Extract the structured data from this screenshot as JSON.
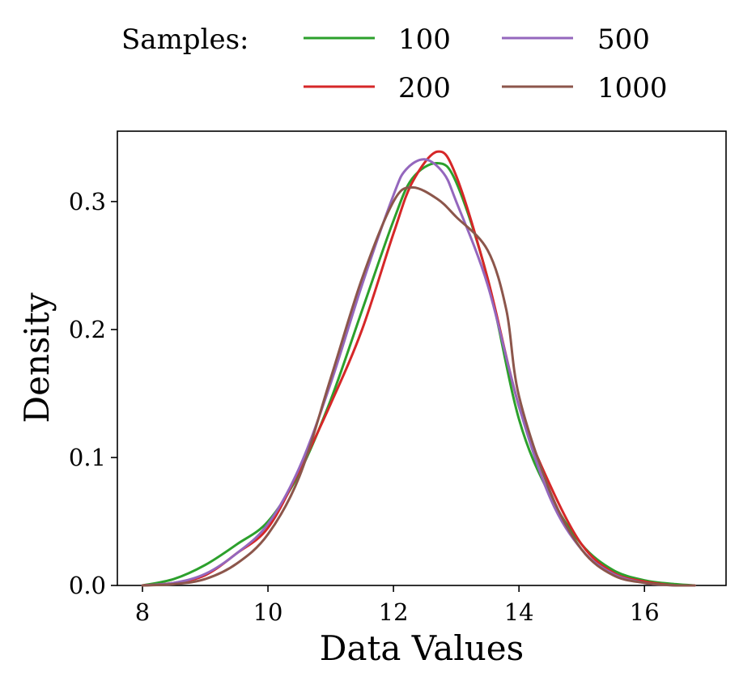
{
  "chart_data": {
    "type": "line",
    "title": "",
    "xlabel": "Data Values",
    "ylabel": "Density",
    "xlim": [
      7.6,
      17.3
    ],
    "ylim": [
      0,
      0.355
    ],
    "xticks": [
      8,
      10,
      12,
      14,
      16
    ],
    "yticks": [
      0.0,
      0.1,
      0.2,
      0.3
    ],
    "xtick_labels": [
      "8",
      "10",
      "12",
      "14",
      "16"
    ],
    "ytick_labels": [
      "0.0",
      "0.1",
      "0.2",
      "0.3"
    ],
    "grid": false,
    "legend": {
      "title": "Samples:",
      "placement": "top, outside plot, 2 columns"
    },
    "series": [
      {
        "name": "100",
        "color": "#2ca02c",
        "x": [
          8.0,
          8.5,
          9.0,
          9.5,
          10.0,
          10.5,
          11.0,
          11.5,
          12.0,
          12.3,
          12.7,
          13.0,
          13.5,
          14.0,
          14.5,
          15.0,
          15.5,
          16.0,
          16.5,
          16.8
        ],
        "y": [
          0.0,
          0.005,
          0.016,
          0.032,
          0.05,
          0.088,
          0.145,
          0.215,
          0.285,
          0.318,
          0.33,
          0.315,
          0.24,
          0.13,
          0.07,
          0.032,
          0.012,
          0.004,
          0.001,
          0.0
        ]
      },
      {
        "name": "200",
        "color": "#d62728",
        "x": [
          8.0,
          8.5,
          9.0,
          9.5,
          10.0,
          10.5,
          11.0,
          11.5,
          12.0,
          12.3,
          12.7,
          13.0,
          13.5,
          14.0,
          14.5,
          15.0,
          15.5,
          16.0,
          16.5,
          16.8
        ],
        "y": [
          0.0,
          0.002,
          0.008,
          0.025,
          0.045,
          0.09,
          0.142,
          0.2,
          0.275,
          0.315,
          0.339,
          0.32,
          0.24,
          0.14,
          0.078,
          0.032,
          0.01,
          0.003,
          0.0,
          0.0
        ]
      },
      {
        "name": "500",
        "color": "#9467bd",
        "x": [
          8.0,
          8.5,
          9.0,
          9.5,
          10.0,
          10.5,
          11.0,
          11.5,
          12.0,
          12.2,
          12.5,
          12.8,
          13.0,
          13.5,
          14.0,
          14.5,
          15.0,
          15.5,
          16.0,
          16.5,
          16.8
        ],
        "y": [
          0.0,
          0.002,
          0.009,
          0.025,
          0.048,
          0.092,
          0.158,
          0.235,
          0.305,
          0.325,
          0.333,
          0.322,
          0.3,
          0.235,
          0.14,
          0.068,
          0.028,
          0.009,
          0.002,
          0.0,
          0.0
        ]
      },
      {
        "name": "1000",
        "color": "#8c564b",
        "x": [
          8.0,
          8.5,
          9.0,
          9.5,
          10.0,
          10.5,
          11.0,
          11.5,
          12.0,
          12.3,
          12.7,
          13.0,
          13.5,
          13.8,
          14.0,
          14.5,
          15.0,
          15.5,
          16.0,
          16.5,
          16.8
        ],
        "y": [
          0.0,
          0.001,
          0.005,
          0.017,
          0.04,
          0.085,
          0.162,
          0.24,
          0.3,
          0.311,
          0.302,
          0.288,
          0.262,
          0.215,
          0.148,
          0.073,
          0.028,
          0.008,
          0.002,
          0.0,
          0.0
        ]
      }
    ]
  }
}
